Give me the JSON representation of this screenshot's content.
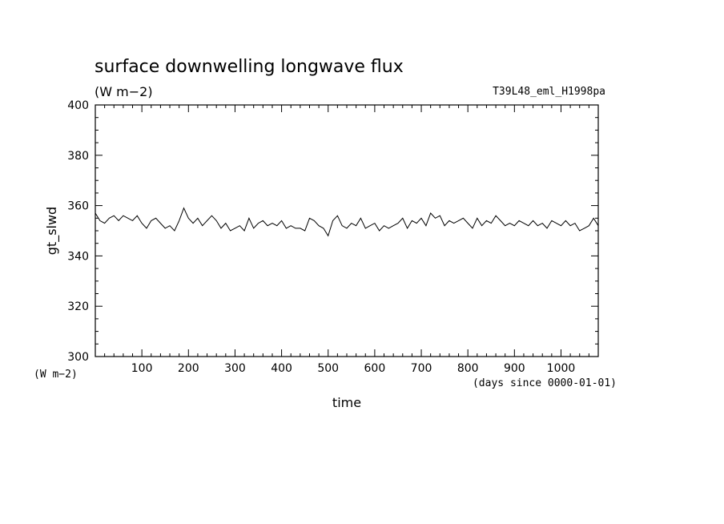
{
  "chart_data": {
    "type": "line",
    "title": "surface downwelling longwave flux",
    "subtitle": "(W m−2)",
    "run_label": "T39L48_eml_H1998pa",
    "ylabel": "gt_slwd",
    "yunit": "(W m−2)",
    "xlabel": "time",
    "xunit": "(days since 0000-01-01)",
    "xlim": [
      0,
      1080
    ],
    "ylim": [
      300,
      400
    ],
    "x_ticks": [
      100,
      200,
      300,
      400,
      500,
      600,
      700,
      800,
      900,
      1000
    ],
    "y_ticks": [
      300,
      320,
      340,
      360,
      380,
      400
    ],
    "grid": false,
    "series": [
      {
        "x": [
          0,
          10,
          20,
          30,
          40,
          50,
          60,
          70,
          80,
          90,
          100,
          110,
          120,
          130,
          140,
          150,
          160,
          170,
          180,
          190,
          200,
          210,
          220,
          230,
          240,
          250,
          260,
          270,
          280,
          290,
          300,
          310,
          320,
          330,
          340,
          350,
          360,
          370,
          380,
          390,
          400,
          410,
          420,
          430,
          440,
          450,
          460,
          470,
          480,
          490,
          500,
          510,
          520,
          530,
          540,
          550,
          560,
          570,
          580,
          590,
          600,
          610,
          620,
          630,
          640,
          650,
          660,
          670,
          680,
          690,
          700,
          710,
          720,
          730,
          740,
          750,
          760,
          770,
          780,
          790,
          800,
          810,
          820,
          830,
          840,
          850,
          860,
          870,
          880,
          890,
          900,
          910,
          920,
          930,
          940,
          950,
          960,
          970,
          980,
          990,
          1000,
          1010,
          1020,
          1030,
          1040,
          1050,
          1060,
          1070,
          1080
        ],
        "y": [
          357,
          354,
          353,
          355,
          356,
          354,
          356,
          355,
          354,
          356,
          353,
          351,
          354,
          355,
          353,
          351,
          352,
          350,
          354,
          359,
          355,
          353,
          355,
          352,
          354,
          356,
          354,
          351,
          353,
          350,
          351,
          352,
          350,
          355,
          351,
          353,
          354,
          352,
          353,
          352,
          354,
          351,
          352,
          351,
          351,
          350,
          355,
          354,
          352,
          351,
          348,
          354,
          356,
          352,
          351,
          353,
          352,
          355,
          351,
          352,
          353,
          350,
          352,
          351,
          352,
          353,
          355,
          351,
          354,
          353,
          355,
          352,
          357,
          355,
          356,
          352,
          354,
          353,
          354,
          355,
          353,
          351,
          355,
          352,
          354,
          353,
          356,
          354,
          352,
          353,
          352,
          354,
          353,
          352,
          354,
          352,
          353,
          351,
          354,
          353,
          352,
          354,
          352,
          353,
          350,
          351,
          352,
          355,
          352
        ]
      }
    ]
  }
}
